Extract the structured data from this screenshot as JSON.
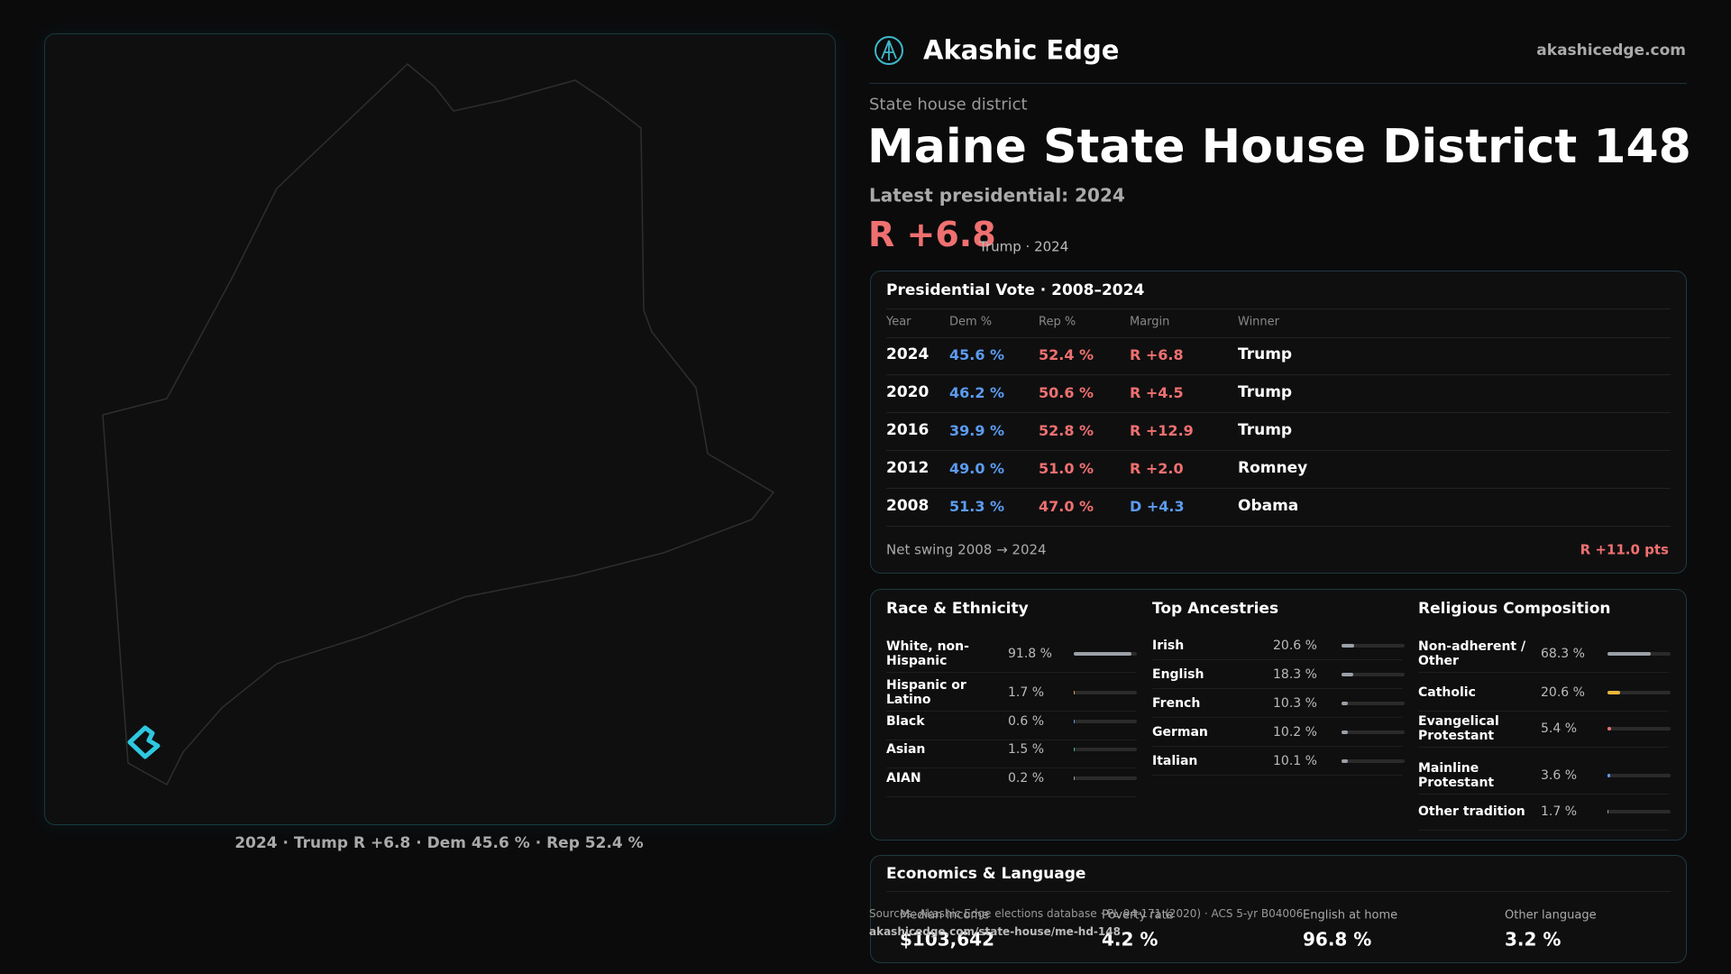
{
  "brand": {
    "name": "Akashic Edge",
    "url": "akashicedge.com"
  },
  "header": {
    "kicker": "State house district",
    "title": "Maine State House District 148",
    "latest": "Latest presidential: 2024",
    "margin": "R +6.8",
    "margin_note": "Trump · 2024",
    "margin_color": "#f07070"
  },
  "map": {
    "caption": "2024 · Trump R +6.8 · Dem 45.6 % · Rep 52.4 %"
  },
  "vote_table": {
    "title": "Presidential Vote · 2008–2024",
    "columns": [
      "Year",
      "Dem %",
      "Rep %",
      "Margin",
      "Winner"
    ],
    "dem_color": "#5b9cf0",
    "rep_color": "#f07070",
    "rows": [
      {
        "year": "2024",
        "dem": "45.6 %",
        "rep": "52.4 %",
        "margin": "R +6.8",
        "margin_color": "#f07070",
        "winner": "Trump"
      },
      {
        "year": "2020",
        "dem": "46.2 %",
        "rep": "50.6 %",
        "margin": "R +4.5",
        "margin_color": "#f07070",
        "winner": "Trump"
      },
      {
        "year": "2016",
        "dem": "39.9 %",
        "rep": "52.8 %",
        "margin": "R +12.9",
        "margin_color": "#f07070",
        "winner": "Trump"
      },
      {
        "year": "2012",
        "dem": "49.0 %",
        "rep": "51.0 %",
        "margin": "R +2.0",
        "margin_color": "#f07070",
        "winner": "Romney"
      },
      {
        "year": "2008",
        "dem": "51.3 %",
        "rep": "47.0 %",
        "margin": "D +4.3",
        "margin_color": "#5b9cf0",
        "winner": "Obama"
      }
    ],
    "footer_label": "Net swing 2008 → 2024",
    "footer_value": "R +11.0 pts",
    "footer_color": "#f07070"
  },
  "race": {
    "title": "Race & Ethnicity",
    "xlim": [
      0,
      100
    ],
    "rows": [
      {
        "label": "White, non-Hispanic",
        "value": 91.8,
        "value_label": "91.8 %",
        "color": "#9aa0a8"
      },
      {
        "label": "Hispanic or Latino",
        "value": 1.7,
        "value_label": "1.7 %",
        "color": "#e8a33a"
      },
      {
        "label": "Black",
        "value": 0.6,
        "value_label": "0.6 %",
        "color": "#5b9cf0"
      },
      {
        "label": "Asian",
        "value": 1.5,
        "value_label": "1.5 %",
        "color": "#3fb8a8"
      },
      {
        "label": "AIAN",
        "value": 0.2,
        "value_label": "0.2 %",
        "color": "#9aa0a8"
      }
    ]
  },
  "ancestries": {
    "title": "Top Ancestries",
    "xlim": [
      0,
      100
    ],
    "rows": [
      {
        "label": "Irish",
        "value": 20.6,
        "value_label": "20.6 %",
        "color": "#9aa0a8"
      },
      {
        "label": "English",
        "value": 18.3,
        "value_label": "18.3 %",
        "color": "#9aa0a8"
      },
      {
        "label": "French",
        "value": 10.3,
        "value_label": "10.3 %",
        "color": "#9aa0a8"
      },
      {
        "label": "German",
        "value": 10.2,
        "value_label": "10.2 %",
        "color": "#9aa0a8"
      },
      {
        "label": "Italian",
        "value": 10.1,
        "value_label": "10.1 %",
        "color": "#9aa0a8"
      }
    ]
  },
  "religion": {
    "title": "Religious Composition",
    "xlim": [
      0,
      100
    ],
    "rows": [
      {
        "label": "Non-adherent / Other",
        "value": 68.3,
        "value_label": "68.3 %",
        "color": "#9aa0a8"
      },
      {
        "label": "Catholic",
        "value": 20.6,
        "value_label": "20.6 %",
        "color": "#e8b63a"
      },
      {
        "label": "Evangelical Protestant",
        "value": 5.4,
        "value_label": "5.4 %",
        "color": "#f07070"
      },
      {
        "label": "Mainline Protestant",
        "value": 3.6,
        "value_label": "3.6 %",
        "color": "#5b9cf0"
      },
      {
        "label": "Other tradition",
        "value": 1.7,
        "value_label": "1.7 %",
        "color": "#9aa0a8"
      }
    ]
  },
  "economics": {
    "title": "Economics & Language",
    "items": [
      {
        "label": "Median income",
        "value": "$103,642"
      },
      {
        "label": "Poverty rate",
        "value": "4.2 %"
      },
      {
        "label": "English at home",
        "value": "96.8 %"
      },
      {
        "label": "Other language",
        "value": "3.2 %"
      }
    ]
  },
  "sources": {
    "text": "Sources: Akashic Edge elections database · PL 94-171 (2020) · ACS 5-yr B04006",
    "link": "akashicedge.com/state-house/me-hd-148"
  }
}
